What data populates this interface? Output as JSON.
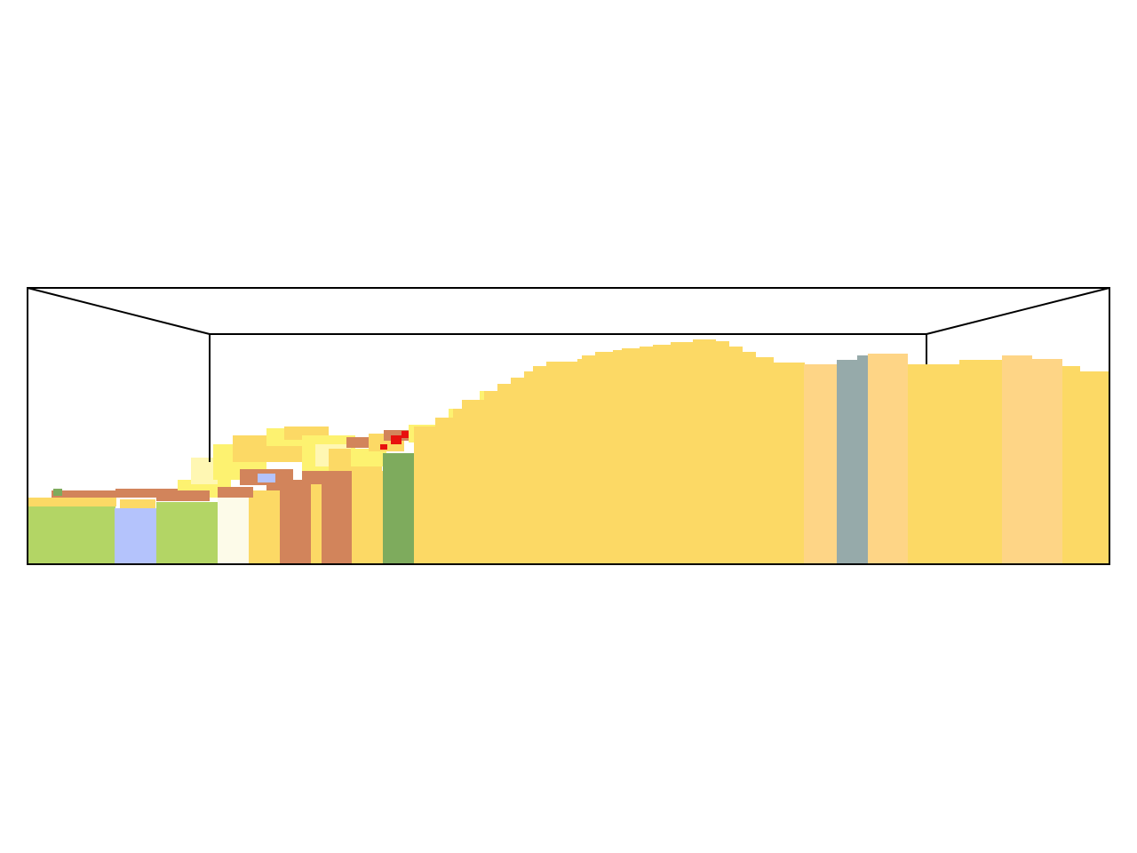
{
  "scene": {
    "kind": "3d-voxel-block-model-side-view",
    "background": "#ffffff",
    "frame_color": "#000000",
    "palette": {
      "sand_yellow": "#fcd965",
      "light_yellow": "#fdf270",
      "pale_yellow": "#fff7b3",
      "light_orange": "#fed586",
      "brown": "#d2845b",
      "light_green": "#b3d565",
      "dark_green": "#7eab5d",
      "lavender_blue": "#b4c3fc",
      "ivory": "#fdfbe9",
      "slate_gray": "#96aaaa",
      "red": "#e8110e"
    }
  }
}
